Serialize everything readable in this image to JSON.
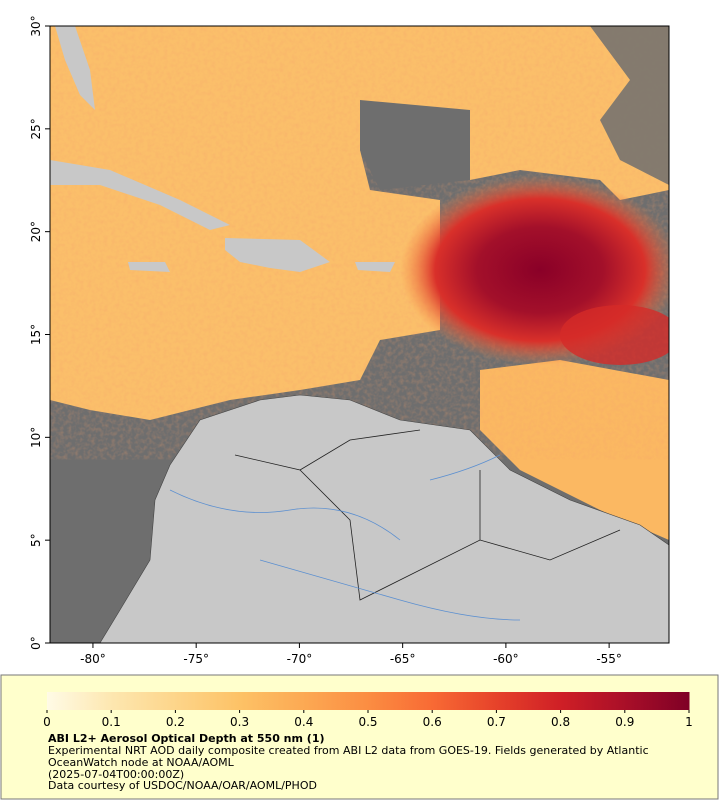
{
  "map": {
    "xlim": [
      -82.08,
      -52.1
    ],
    "ylim": [
      0,
      30
    ],
    "xticks": [
      {
        "value": -80,
        "label": "-80°"
      },
      {
        "value": -75,
        "label": "-75°"
      },
      {
        "value": -70,
        "label": "-70°"
      },
      {
        "value": -65,
        "label": "-65°"
      },
      {
        "value": -60,
        "label": "-60°"
      },
      {
        "value": -55,
        "label": "-55°"
      }
    ],
    "yticks": [
      {
        "value": 0,
        "label": "0°"
      },
      {
        "value": 5,
        "label": "5°"
      },
      {
        "value": 10,
        "label": "10°"
      },
      {
        "value": 15,
        "label": "15°"
      },
      {
        "value": 20,
        "label": "20°"
      },
      {
        "value": 25,
        "label": "25°"
      },
      {
        "value": 30,
        "label": "30°"
      }
    ]
  },
  "colorbar": {
    "lim": [
      0,
      1
    ],
    "ticks": [
      0,
      0.1,
      0.2,
      0.3,
      0.4,
      0.5,
      0.6,
      0.7,
      0.8,
      0.9,
      1
    ],
    "colors": [
      "#fffbe6",
      "#fde7b0",
      "#fdd58a",
      "#fdc266",
      "#fca953",
      "#fb8d42",
      "#f86a34",
      "#e6422a",
      "#cf1f26",
      "#a90f28",
      "#7f0026"
    ]
  },
  "caption": {
    "title": "ABI L2+ Aerosol Optical Depth at 550 nm (1)",
    "description": "Experimental NRT AOD daily composite created from ABI L2 data from GOES-19. Fields generated by Atlantic OceanWatch node at NOAA/AOML",
    "time": "(2025-07-04T00:00:00Z)",
    "credit": "Data courtesy of USDOC/NOAA/OAR/AOML/PHOD"
  }
}
